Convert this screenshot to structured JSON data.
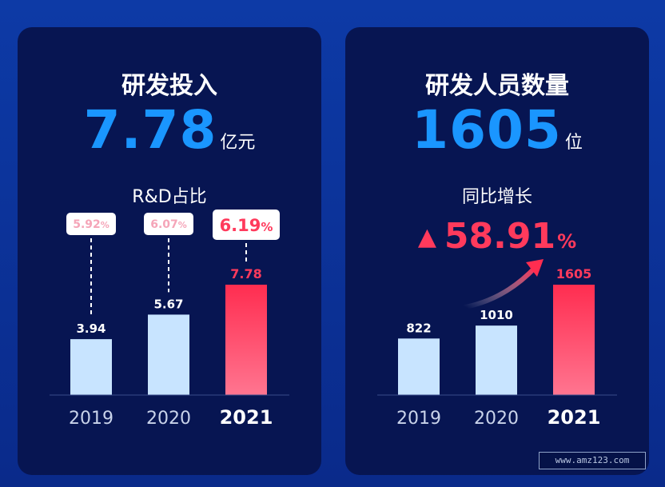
{
  "panels": [
    {
      "title": "研发投入",
      "big_number": "7.78",
      "big_unit": "亿元",
      "subtitle": "R&D占比"
    },
    {
      "title": "研发人员数量",
      "big_number": "1605",
      "big_unit": "位",
      "subtitle": "同比增长",
      "growth": {
        "arrow": "▲",
        "value": "58.91",
        "unit": "%"
      }
    }
  ],
  "colors": {
    "bar_light": "#c8e4ff",
    "bar_highlight_top": "#ff2d50",
    "bar_highlight_bottom": "#ff7590",
    "accent_blue": "#1a96ff",
    "accent_red": "#ff3a5c",
    "pct_label_light": "#f5a5b8"
  },
  "chart_data": [
    {
      "type": "bar",
      "categories": [
        "2019",
        "2020",
        "2021"
      ],
      "values": [
        3.94,
        5.67,
        7.78
      ],
      "value_labels": [
        "3.94",
        "5.67",
        "7.78"
      ],
      "percent_labels": [
        {
          "number": "5.92",
          "unit": "%"
        },
        {
          "number": "6.07",
          "unit": "%"
        },
        {
          "number": "6.19",
          "unit": "%"
        }
      ],
      "highlight_index": 2,
      "ylim": [
        0,
        7.78
      ]
    },
    {
      "type": "bar",
      "categories": [
        "2019",
        "2020",
        "2021"
      ],
      "values": [
        822,
        1010,
        1605
      ],
      "value_labels": [
        "822",
        "1010",
        "1605"
      ],
      "highlight_index": 2,
      "ylim": [
        0,
        1605
      ],
      "trend_arrow": true
    }
  ],
  "watermark": "www.amz123.com"
}
